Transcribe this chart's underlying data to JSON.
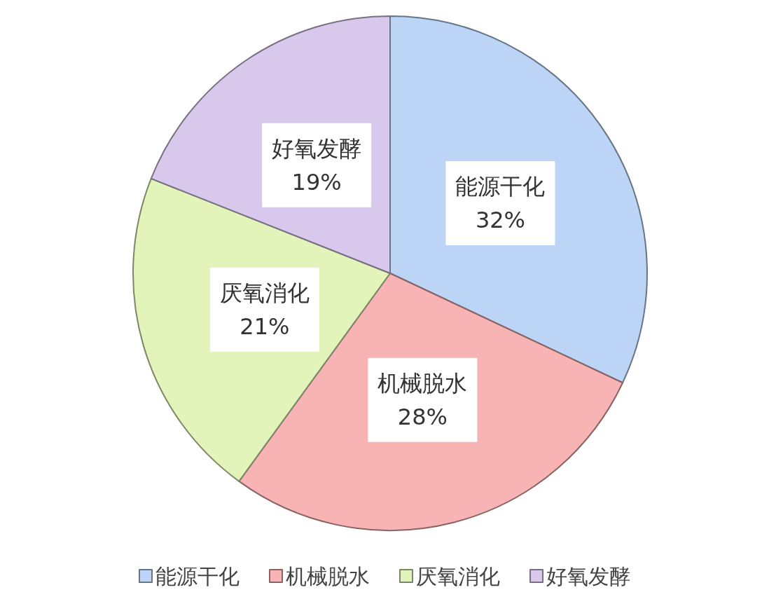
{
  "chart_data": {
    "type": "pie",
    "categories": [
      "能源干化",
      "机械脱水",
      "厌氧消化",
      "好氧发酵"
    ],
    "values": [
      32,
      28,
      21,
      19
    ],
    "value_labels": [
      "32%",
      "28%",
      "21%",
      "19%"
    ],
    "colors": [
      "#bcd5f6",
      "#f8b4b4",
      "#e3f4bb",
      "#d8c9ec"
    ],
    "legend": "bottom"
  }
}
